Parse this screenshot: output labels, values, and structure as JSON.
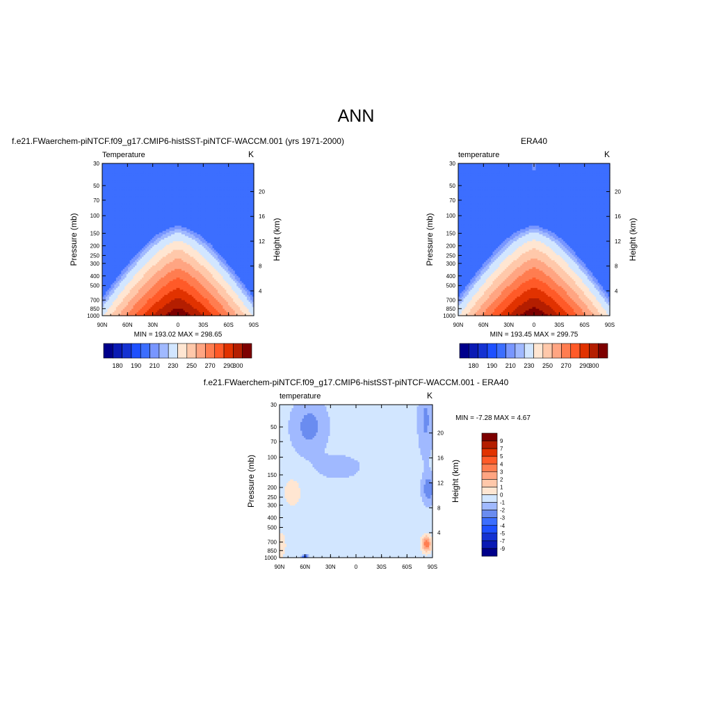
{
  "figure": {
    "title": "ANN"
  },
  "colors": {
    "abs_palette": [
      "#00008b",
      "#0a1ab4",
      "#1432d2",
      "#1e50ff",
      "#3c6eff",
      "#7896ff",
      "#a0b9ff",
      "#d2e6ff",
      "#ffe6d2",
      "#ffc8aa",
      "#ffa582",
      "#ff7d50",
      "#ff5a28",
      "#e13200",
      "#b41e00",
      "#7d0000"
    ],
    "diff_palette": [
      "#00008b",
      "#0a1ab4",
      "#1432d2",
      "#1e50ff",
      "#3c6eff",
      "#6a8cf0",
      "#a0b9ff",
      "#d2e6ff",
      "#ffe6d2",
      "#ffc8aa",
      "#ffa582",
      "#ff7d50",
      "#ff5a28",
      "#e13200",
      "#b41e00",
      "#7d0000"
    ]
  },
  "chart_data": [
    {
      "type": "heatmap",
      "panel": "model",
      "title": "f.e21.FWaerchem-piNTCF.f09_g17.CMIP6-histSST-piNTCF-WACCM.001 (yrs 1971-2000)",
      "left_label": "Temperature",
      "units": "K",
      "xlabel": "",
      "ylabel": "Pressure (mb)",
      "ylabel_right": "Height (km)",
      "x_ticks": [
        "90N",
        "60N",
        "30N",
        "0",
        "30S",
        "60S",
        "90S"
      ],
      "x_range": [
        90,
        -90
      ],
      "y_ticks": [
        30,
        50,
        70,
        100,
        150,
        200,
        250,
        300,
        400,
        500,
        700,
        850,
        1000
      ],
      "y_range": [
        30,
        1000
      ],
      "y_scale": "log",
      "right_ticks": [
        4,
        8,
        12,
        16,
        20
      ],
      "stats": "MIN = 193.02  MAX = 298.65",
      "min": 193.02,
      "max": 298.65,
      "contour_levels": [
        180,
        185,
        190,
        195,
        200,
        205,
        210,
        220,
        230,
        240,
        250,
        260,
        270,
        280,
        290,
        300
      ],
      "colorbar_labels": [
        "180",
        "190",
        "210",
        "230",
        "250",
        "270",
        "290",
        "300"
      ]
    },
    {
      "type": "heatmap",
      "panel": "obs",
      "title": "ERA40",
      "left_label": "temperature",
      "units": "K",
      "xlabel": "",
      "ylabel": "Pressure (mb)",
      "ylabel_right": "Height (km)",
      "x_ticks": [
        "90N",
        "60N",
        "30N",
        "0",
        "30S",
        "60S",
        "90S"
      ],
      "x_range": [
        90,
        -90
      ],
      "y_ticks": [
        30,
        50,
        70,
        100,
        150,
        200,
        250,
        300,
        400,
        500,
        700,
        850,
        1000
      ],
      "y_range": [
        30,
        1000
      ],
      "y_scale": "log",
      "right_ticks": [
        4,
        8,
        12,
        16,
        20
      ],
      "stats": "MIN = 193.45  MAX = 299.75",
      "min": 193.45,
      "max": 299.75,
      "contour_levels": [
        180,
        185,
        190,
        195,
        200,
        205,
        210,
        220,
        230,
        240,
        250,
        260,
        270,
        280,
        290,
        300
      ],
      "colorbar_labels": [
        "180",
        "190",
        "210",
        "230",
        "250",
        "270",
        "290",
        "300"
      ]
    },
    {
      "type": "heatmap",
      "panel": "diff",
      "title": "f.e21.FWaerchem-piNTCF.f09_g17.CMIP6-histSST-piNTCF-WACCM.001 - ERA40",
      "left_label": "temperature",
      "units": "K",
      "xlabel": "",
      "ylabel": "Pressure (mb)",
      "ylabel_right": "Height (km)",
      "x_ticks": [
        "90N",
        "60N",
        "30N",
        "0",
        "30S",
        "60S",
        "90S"
      ],
      "x_range": [
        90,
        -90
      ],
      "y_ticks": [
        30,
        50,
        70,
        100,
        150,
        200,
        250,
        300,
        400,
        500,
        700,
        850,
        1000
      ],
      "y_range": [
        30,
        1000
      ],
      "y_scale": "log",
      "right_ticks": [
        4,
        8,
        12,
        16,
        20
      ],
      "stats": "MIN =  -7.28  MAX =   4.67",
      "min": -7.28,
      "max": 4.67,
      "contour_levels": [
        -9,
        -7,
        -5,
        -4,
        -3,
        -2,
        -1,
        0,
        1,
        2,
        3,
        4,
        5,
        7,
        9
      ],
      "colorbar_labels": [
        "9",
        "7",
        "5",
        "4",
        "3",
        "2",
        "1",
        "0",
        "-1",
        "-2",
        "-3",
        "-4",
        "-5",
        "-7",
        "-9"
      ]
    }
  ]
}
